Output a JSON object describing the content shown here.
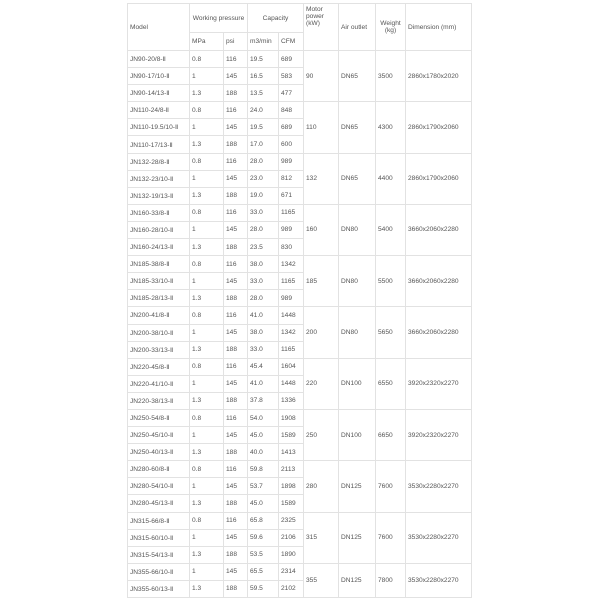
{
  "header": {
    "model": "Model",
    "working_pressure": "Working pressure",
    "capacity": "Capacity",
    "motor_power": "Motor power (kW)",
    "air_outlet": "Air outlet",
    "weight": "Weight (kg)",
    "dimension": "Dimension (mm)",
    "mpa": "MPa",
    "psi": "psi",
    "m3min": "m3/min",
    "cfm": "CFM"
  },
  "groups": [
    {
      "motor": "90",
      "outlet": "DN65",
      "weight": "3500",
      "dimension": "2860x1780x2020",
      "rows": [
        {
          "model": "JN90-20/8-Ⅱ",
          "mpa": "0.8",
          "psi": "116",
          "m3": "19.5",
          "cfm": "689"
        },
        {
          "model": "JN90-17/10-Ⅱ",
          "mpa": "1",
          "psi": "145",
          "m3": "16.5",
          "cfm": "583"
        },
        {
          "model": "JN90-14/13-Ⅱ",
          "mpa": "1.3",
          "psi": "188",
          "m3": "13.5",
          "cfm": "477"
        }
      ]
    },
    {
      "motor": "110",
      "outlet": "DN65",
      "weight": "4300",
      "dimension": "2860x1790x2060",
      "rows": [
        {
          "model": "JN110-24/8-Ⅱ",
          "mpa": "0.8",
          "psi": "116",
          "m3": "24.0",
          "cfm": "848"
        },
        {
          "model": "JN110-19.5/10-Ⅱ",
          "mpa": "1",
          "psi": "145",
          "m3": "19.5",
          "cfm": "689"
        },
        {
          "model": "JN110-17/13-Ⅱ",
          "mpa": "1.3",
          "psi": "188",
          "m3": "17.0",
          "cfm": "600"
        }
      ]
    },
    {
      "motor": "132",
      "outlet": "DN65",
      "weight": "4400",
      "dimension": "2860x1790x2060",
      "rows": [
        {
          "model": "JN132-28/8-Ⅱ",
          "mpa": "0.8",
          "psi": "116",
          "m3": "28.0",
          "cfm": "989"
        },
        {
          "model": "JN132-23/10-Ⅱ",
          "mpa": "1",
          "psi": "145",
          "m3": "23.0",
          "cfm": "812"
        },
        {
          "model": "JN132-19/13-Ⅱ",
          "mpa": "1.3",
          "psi": "188",
          "m3": "19.0",
          "cfm": "671"
        }
      ]
    },
    {
      "motor": "160",
      "outlet": "DN80",
      "weight": "5400",
      "dimension": "3660x2060x2280",
      "rows": [
        {
          "model": "JN160-33/8-Ⅱ",
          "mpa": "0.8",
          "psi": "116",
          "m3": "33.0",
          "cfm": "1165"
        },
        {
          "model": "JN160-28/10-Ⅱ",
          "mpa": "1",
          "psi": "145",
          "m3": "28.0",
          "cfm": "989"
        },
        {
          "model": "JN160-24/13-Ⅱ",
          "mpa": "1.3",
          "psi": "188",
          "m3": "23.5",
          "cfm": "830"
        }
      ]
    },
    {
      "motor": "185",
      "outlet": "DN80",
      "weight": "5500",
      "dimension": "3660x2060x2280",
      "rows": [
        {
          "model": "JN185-38/8-Ⅱ",
          "mpa": "0.8",
          "psi": "116",
          "m3": "38.0",
          "cfm": "1342"
        },
        {
          "model": "JN185-33/10-Ⅱ",
          "mpa": "1",
          "psi": "145",
          "m3": "33.0",
          "cfm": "1165"
        },
        {
          "model": "JN185-28/13-Ⅱ",
          "mpa": "1.3",
          "psi": "188",
          "m3": "28.0",
          "cfm": "989"
        }
      ]
    },
    {
      "motor": "200",
      "outlet": "DN80",
      "weight": "5650",
      "dimension": "3660x2060x2280",
      "rows": [
        {
          "model": "JN200-41/8-Ⅱ",
          "mpa": "0.8",
          "psi": "116",
          "m3": "41.0",
          "cfm": "1448"
        },
        {
          "model": "JN200-38/10-Ⅱ",
          "mpa": "1",
          "psi": "145",
          "m3": "38.0",
          "cfm": "1342"
        },
        {
          "model": "JN200-33/13-Ⅱ",
          "mpa": "1.3",
          "psi": "188",
          "m3": "33.0",
          "cfm": "1165"
        }
      ]
    },
    {
      "motor": "220",
      "outlet": "DN100",
      "weight": "6550",
      "dimension": "3920x2320x2270",
      "rows": [
        {
          "model": "JN220-45/8-Ⅱ",
          "mpa": "0.8",
          "psi": "116",
          "m3": "45.4",
          "cfm": "1604"
        },
        {
          "model": "JN220-41/10-Ⅱ",
          "mpa": "1",
          "psi": "145",
          "m3": "41.0",
          "cfm": "1448"
        },
        {
          "model": "JN220-38/13-Ⅱ",
          "mpa": "1.3",
          "psi": "188",
          "m3": "37.8",
          "cfm": "1336"
        }
      ]
    },
    {
      "motor": "250",
      "outlet": "DN100",
      "weight": "6650",
      "dimension": "3920x2320x2270",
      "rows": [
        {
          "model": "JN250-54/8-Ⅱ",
          "mpa": "0.8",
          "psi": "116",
          "m3": "54.0",
          "cfm": "1908"
        },
        {
          "model": "JN250-45/10-Ⅱ",
          "mpa": "1",
          "psi": "145",
          "m3": "45.0",
          "cfm": "1589"
        },
        {
          "model": "JN250-40/13-Ⅱ",
          "mpa": "1.3",
          "psi": "188",
          "m3": "40.0",
          "cfm": "1413"
        }
      ]
    },
    {
      "motor": "280",
      "outlet": "DN125",
      "weight": "7600",
      "dimension": "3530x2280x2270",
      "rows": [
        {
          "model": "JN280-60/8-Ⅱ",
          "mpa": "0.8",
          "psi": "116",
          "m3": "59.8",
          "cfm": "2113"
        },
        {
          "model": "JN280-54/10-Ⅱ",
          "mpa": "1",
          "psi": "145",
          "m3": "53.7",
          "cfm": "1898"
        },
        {
          "model": "JN280-45/13-Ⅱ",
          "mpa": "1.3",
          "psi": "188",
          "m3": "45.0",
          "cfm": "1589"
        }
      ]
    },
    {
      "motor": "315",
      "outlet": "DN125",
      "weight": "7600",
      "dimension": "3530x2280x2270",
      "rows": [
        {
          "model": "JN315-66/8-Ⅱ",
          "mpa": "0.8",
          "psi": "116",
          "m3": "65.8",
          "cfm": "2325"
        },
        {
          "model": "JN315-60/10-Ⅱ",
          "mpa": "1",
          "psi": "145",
          "m3": "59.6",
          "cfm": "2106"
        },
        {
          "model": "JN315-54/13-Ⅱ",
          "mpa": "1.3",
          "psi": "188",
          "m3": "53.5",
          "cfm": "1890"
        }
      ]
    },
    {
      "motor": "355",
      "outlet": "DN125",
      "weight": "7800",
      "dimension": "3530x2280x2270",
      "rows": [
        {
          "model": "JN355-66/10-Ⅱ",
          "mpa": "1",
          "psi": "145",
          "m3": "65.5",
          "cfm": "2314"
        },
        {
          "model": "JN355-60/13-Ⅱ",
          "mpa": "1.3",
          "psi": "188",
          "m3": "59.5",
          "cfm": "2102"
        }
      ]
    }
  ]
}
